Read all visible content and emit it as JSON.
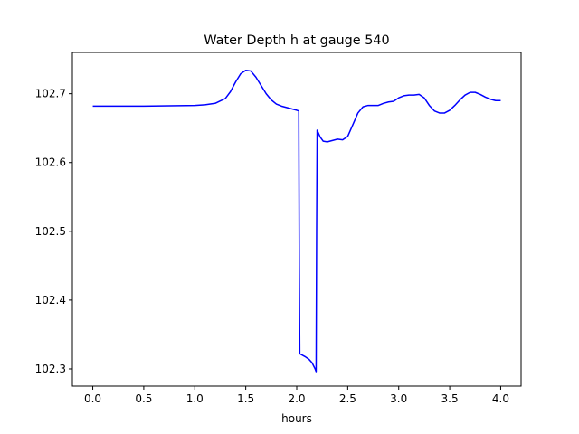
{
  "chart_data": {
    "type": "line",
    "title": "Water Depth h at gauge 540",
    "xlabel": "hours",
    "ylabel": "",
    "xlim": [
      -0.2,
      4.2
    ],
    "ylim": [
      102.275,
      102.76
    ],
    "grid": false,
    "x_ticks": [
      0.0,
      0.5,
      1.0,
      1.5,
      2.0,
      2.5,
      3.0,
      3.5,
      4.0
    ],
    "x_tick_labels": [
      "0.0",
      "0.5",
      "1.0",
      "1.5",
      "2.0",
      "2.5",
      "3.0",
      "3.5",
      "4.0"
    ],
    "y_ticks": [
      102.3,
      102.4,
      102.5,
      102.6,
      102.7
    ],
    "y_tick_labels": [
      "102.3",
      "102.4",
      "102.5",
      "102.6",
      "102.7"
    ],
    "series": [
      {
        "color": "#0000ff",
        "x": [
          0.0,
          0.5,
          1.0,
          1.1,
          1.2,
          1.3,
          1.35,
          1.4,
          1.45,
          1.5,
          1.55,
          1.6,
          1.65,
          1.7,
          1.75,
          1.8,
          1.85,
          1.9,
          1.95,
          2.0,
          2.02,
          2.025,
          2.03,
          2.08,
          2.12,
          2.15,
          2.18,
          2.19,
          2.195,
          2.2,
          2.23,
          2.26,
          2.3,
          2.35,
          2.4,
          2.45,
          2.5,
          2.55,
          2.6,
          2.65,
          2.7,
          2.75,
          2.8,
          2.85,
          2.9,
          2.95,
          3.0,
          3.05,
          3.1,
          3.15,
          3.2,
          3.25,
          3.3,
          3.35,
          3.4,
          3.45,
          3.5,
          3.55,
          3.6,
          3.65,
          3.7,
          3.75,
          3.8,
          3.85,
          3.9,
          3.95,
          4.0
        ],
        "y": [
          102.682,
          102.682,
          102.683,
          102.684,
          102.686,
          102.693,
          102.703,
          102.717,
          102.729,
          102.734,
          102.733,
          102.724,
          102.712,
          102.7,
          102.691,
          102.685,
          102.682,
          102.68,
          102.678,
          102.676,
          102.675,
          102.45,
          102.322,
          102.318,
          102.314,
          102.309,
          102.3,
          102.296,
          102.5,
          102.647,
          102.637,
          102.631,
          102.63,
          102.632,
          102.634,
          102.633,
          102.638,
          102.655,
          102.672,
          102.681,
          102.683,
          102.683,
          102.683,
          102.686,
          102.688,
          102.689,
          102.694,
          102.697,
          102.698,
          102.698,
          102.699,
          102.694,
          102.683,
          102.675,
          102.672,
          102.672,
          102.676,
          102.683,
          102.691,
          102.698,
          102.702,
          102.702,
          102.699,
          102.695,
          102.692,
          102.69,
          102.69
        ]
      }
    ]
  }
}
